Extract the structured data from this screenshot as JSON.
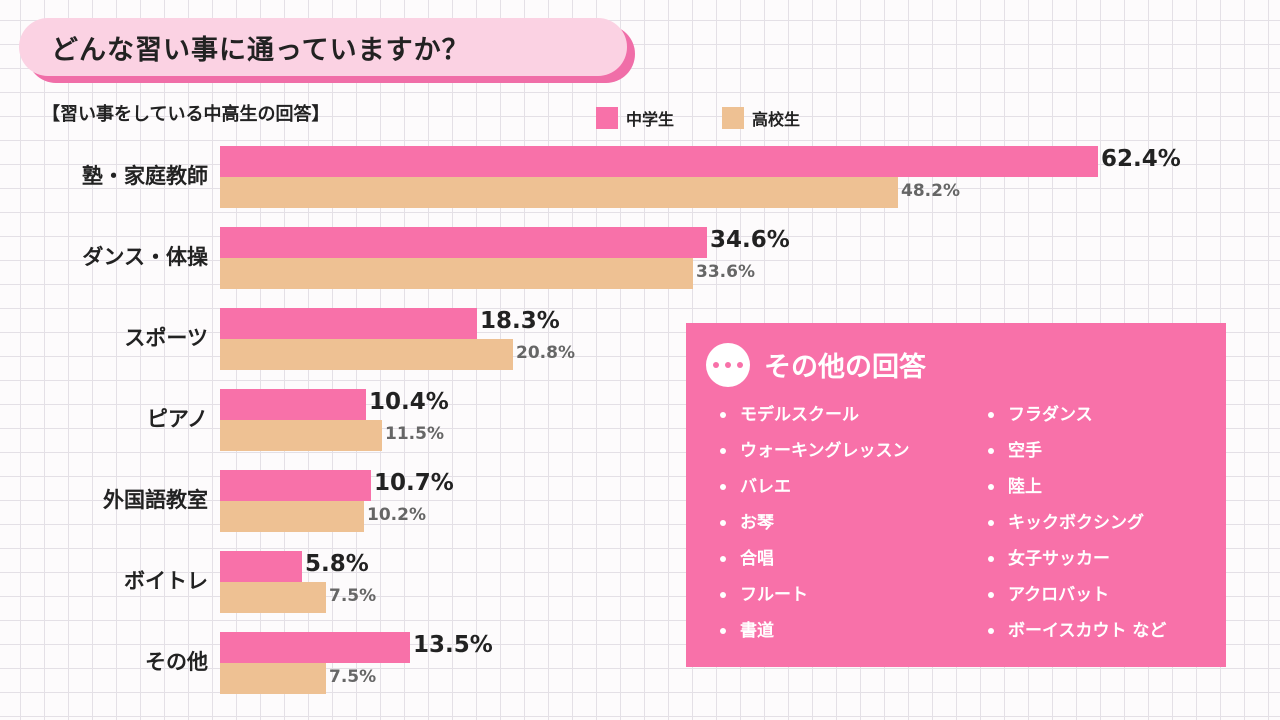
{
  "title": "どんな習い事に通っていますか？",
  "subtitle": "【習い事をしている中高生の回答】",
  "colors": {
    "middle": "#f871a9",
    "high": "#eec193",
    "title_bg": "#fbd2e3",
    "title_shadow": "#f06ea8"
  },
  "chart_data": {
    "type": "bar",
    "orientation": "horizontal",
    "title": "どんな習い事に通っていますか？",
    "subtitle": "【習い事をしている中高生の回答】",
    "categories": [
      "塾・家庭教師",
      "ダンス・体操",
      "スポーツ",
      "ピアノ",
      "外国語教室",
      "ボイトレ",
      "その他"
    ],
    "series": [
      {
        "name": "中学生",
        "values": [
          62.4,
          34.6,
          18.3,
          10.4,
          10.7,
          5.8,
          13.5
        ]
      },
      {
        "name": "高校生",
        "values": [
          48.2,
          33.6,
          20.8,
          11.5,
          10.2,
          7.5,
          7.5
        ]
      }
    ],
    "value_labels": [
      [
        "62.4%",
        "34.6%",
        "18.3%",
        "10.4%",
        "10.7%",
        "5.8%",
        "13.5%"
      ],
      [
        "48.2%",
        "33.6%",
        "20.8%",
        "11.5%",
        "10.2%",
        "7.5%",
        "7.5%"
      ]
    ],
    "unit": "%",
    "legend": "top-right",
    "grid": false
  },
  "others": {
    "title": "その他の回答",
    "left": [
      "モデルスクール",
      "ウォーキングレッスン",
      "バレエ",
      "お琴",
      "合唱",
      "フルート",
      "書道"
    ],
    "right": [
      "フラダンス",
      "空手",
      "陸上",
      "キックボクシング",
      "女子サッカー",
      "アクロバット",
      "ボーイスカウト など"
    ]
  }
}
